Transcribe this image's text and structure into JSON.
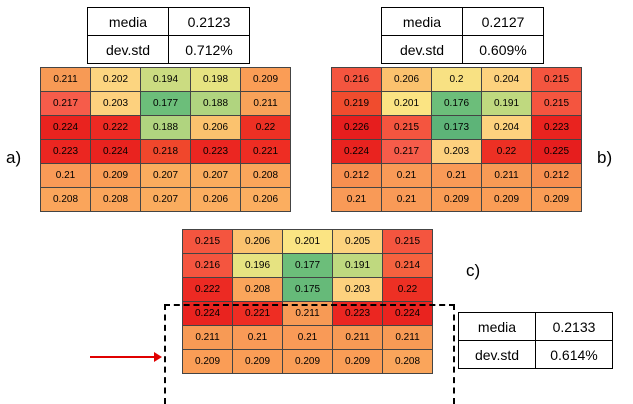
{
  "panels": [
    {
      "label": "a)",
      "stats": {
        "media_label": "media",
        "media_value": "0.2123",
        "std_label": "dev.std",
        "std_value": "0.712%"
      },
      "grid": [
        [
          [
            "0.211",
            "#f79a55"
          ],
          [
            "0.202",
            "#fcd580"
          ],
          [
            "0.194",
            "#cbdc81"
          ],
          [
            "0.198",
            "#e6e381"
          ],
          [
            "0.209",
            "#fa9d56"
          ]
        ],
        [
          [
            "0.217",
            "#f65c4a"
          ],
          [
            "0.203",
            "#fdd17e"
          ],
          [
            "0.177",
            "#6cbe7a"
          ],
          [
            "0.188",
            "#b0d47f"
          ],
          [
            "0.211",
            "#f8a259"
          ]
        ],
        [
          [
            "0.224",
            "#e9231f"
          ],
          [
            "0.222",
            "#ec2a23"
          ],
          [
            "0.188",
            "#b0d47f"
          ],
          [
            "0.206",
            "#fbc26e"
          ],
          [
            "0.22",
            "#ed3024"
          ]
        ],
        [
          [
            "0.223",
            "#eb2621"
          ],
          [
            "0.224",
            "#e9231f"
          ],
          [
            "0.218",
            "#f0472c"
          ],
          [
            "0.223",
            "#eb2621"
          ],
          [
            "0.221",
            "#ee2d23"
          ]
        ],
        [
          [
            "0.21",
            "#f99a57"
          ],
          [
            "0.209",
            "#fa9d56"
          ],
          [
            "0.207",
            "#faac5e"
          ],
          [
            "0.207",
            "#faac5e"
          ],
          [
            "0.208",
            "#faa55b"
          ]
        ],
        [
          [
            "0.208",
            "#faa55b"
          ],
          [
            "0.208",
            "#faa55b"
          ],
          [
            "0.207",
            "#faac5e"
          ],
          [
            "0.206",
            "#fbae60"
          ],
          [
            "0.206",
            "#fbae60"
          ]
        ]
      ]
    },
    {
      "label": "b)",
      "stats": {
        "media_label": "media",
        "media_value": "0.2127",
        "std_label": "dev.std",
        "std_value": "0.609%"
      },
      "grid": [
        [
          [
            "0.216",
            "#f4553f"
          ],
          [
            "0.206",
            "#fbc26e"
          ],
          [
            "0.2",
            "#f8e183"
          ],
          [
            "0.204",
            "#fdd27e"
          ],
          [
            "0.215",
            "#f4553f"
          ]
        ],
        [
          [
            "0.219",
            "#f04c2e"
          ],
          [
            "0.201",
            "#fbe483"
          ],
          [
            "0.176",
            "#6cbe7a"
          ],
          [
            "0.191",
            "#bfd97f"
          ],
          [
            "0.215",
            "#f4553f"
          ]
        ],
        [
          [
            "0.226",
            "#e61e1e"
          ],
          [
            "0.215",
            "#f4553f"
          ],
          [
            "0.173",
            "#5db478"
          ],
          [
            "0.204",
            "#fdd27e"
          ],
          [
            "0.223",
            "#e9231f"
          ]
        ],
        [
          [
            "0.224",
            "#e9231f"
          ],
          [
            "0.217",
            "#f65c4a"
          ],
          [
            "0.203",
            "#fdd17e"
          ],
          [
            "0.22",
            "#ed3024"
          ],
          [
            "0.225",
            "#e61e1e"
          ]
        ],
        [
          [
            "0.212",
            "#f78f50"
          ],
          [
            "0.21",
            "#f99a57"
          ],
          [
            "0.21",
            "#f99a57"
          ],
          [
            "0.211",
            "#f79a55"
          ],
          [
            "0.212",
            "#f78f50"
          ]
        ],
        [
          [
            "0.21",
            "#f99a57"
          ],
          [
            "0.21",
            "#f99a57"
          ],
          [
            "0.209",
            "#fa9d56"
          ],
          [
            "0.209",
            "#fa9d56"
          ],
          [
            "0.209",
            "#fa9d56"
          ]
        ]
      ]
    },
    {
      "label": "c)",
      "stats": {
        "media_label": "media",
        "media_value": "0.2133",
        "std_label": "dev.std",
        "std_value": "0.614%"
      },
      "grid": [
        [
          [
            "0.215",
            "#f4553f"
          ],
          [
            "0.206",
            "#fbc26e"
          ],
          [
            "0.201",
            "#fbe483"
          ],
          [
            "0.205",
            "#fdd27e"
          ],
          [
            "0.215",
            "#f4553f"
          ]
        ],
        [
          [
            "0.216",
            "#f4553f"
          ],
          [
            "0.196",
            "#e6e381"
          ],
          [
            "0.177",
            "#6cbe7a"
          ],
          [
            "0.191",
            "#bfd97f"
          ],
          [
            "0.214",
            "#f5623f"
          ]
        ],
        [
          [
            "0.222",
            "#ec2a23"
          ],
          [
            "0.208",
            "#faa55b"
          ],
          [
            "0.175",
            "#66ba79"
          ],
          [
            "0.203",
            "#fdd17e"
          ],
          [
            "0.22",
            "#ed3024"
          ]
        ],
        [
          [
            "0.224",
            "#e9231f"
          ],
          [
            "0.221",
            "#ee2d23"
          ],
          [
            "0.211",
            "#f79a55"
          ],
          [
            "0.223",
            "#eb2621"
          ],
          [
            "0.224",
            "#e9231f"
          ]
        ],
        [
          [
            "0.211",
            "#f79a55"
          ],
          [
            "0.21",
            "#f99a57"
          ],
          [
            "0.21",
            "#f99a57"
          ],
          [
            "0.211",
            "#f79a55"
          ],
          [
            "0.211",
            "#f79a55"
          ]
        ],
        [
          [
            "0.209",
            "#fa9d56"
          ],
          [
            "0.209",
            "#fa9d56"
          ],
          [
            "0.209",
            "#fa9d56"
          ],
          [
            "0.209",
            "#fa9d56"
          ],
          [
            "0.208",
            "#faa55b"
          ]
        ]
      ]
    }
  ],
  "colors": {
    "arrow": "#e00000",
    "border": "#444444"
  }
}
